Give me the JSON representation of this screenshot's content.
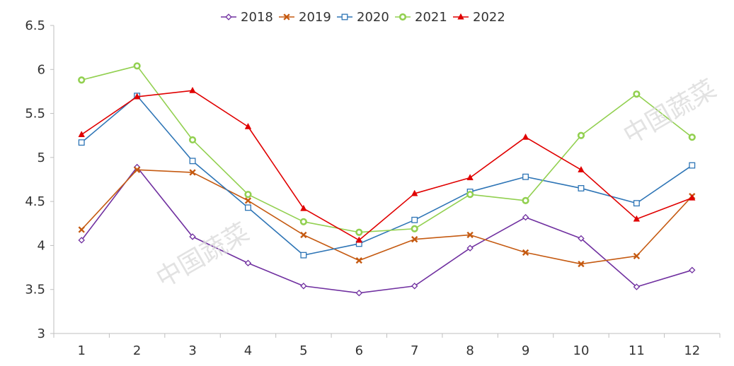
{
  "chart_data": {
    "type": "line",
    "categories": [
      "1",
      "2",
      "3",
      "4",
      "5",
      "6",
      "7",
      "8",
      "9",
      "10",
      "11",
      "12"
    ],
    "ylim": [
      3,
      6.5
    ],
    "yticks": [
      "3",
      "3.5",
      "4",
      "4.5",
      "5",
      "5.5",
      "6",
      "6.5"
    ],
    "grid": false,
    "legend_position": "top",
    "series": [
      {
        "name": "2018",
        "color": "#7030A0",
        "marker": "diamond-open",
        "values": [
          4.06,
          4.89,
          4.1,
          3.8,
          3.54,
          3.46,
          3.54,
          3.97,
          4.32,
          4.08,
          3.53,
          3.72
        ]
      },
      {
        "name": "2019",
        "color": "#C55A11",
        "marker": "x",
        "values": [
          4.18,
          4.86,
          4.83,
          4.51,
          4.12,
          3.83,
          4.07,
          4.12,
          3.92,
          3.79,
          3.88,
          4.56
        ]
      },
      {
        "name": "2020",
        "color": "#2E75B6",
        "marker": "square-open",
        "values": [
          5.17,
          5.7,
          4.96,
          4.43,
          3.89,
          4.02,
          4.29,
          4.61,
          4.78,
          4.65,
          4.48,
          4.91
        ]
      },
      {
        "name": "2021",
        "color": "#92D050",
        "marker": "circle-open",
        "values": [
          5.88,
          6.04,
          5.2,
          4.58,
          4.27,
          4.15,
          4.19,
          4.58,
          4.51,
          5.25,
          5.72,
          5.23
        ]
      },
      {
        "name": "2022",
        "color": "#E00000",
        "marker": "triangle",
        "values": [
          5.26,
          5.69,
          5.76,
          5.35,
          4.42,
          4.06,
          4.59,
          4.77,
          5.23,
          4.86,
          4.3,
          4.54
        ]
      }
    ]
  },
  "watermarks": [
    "中国蔬菜",
    "中国蔬菜"
  ]
}
